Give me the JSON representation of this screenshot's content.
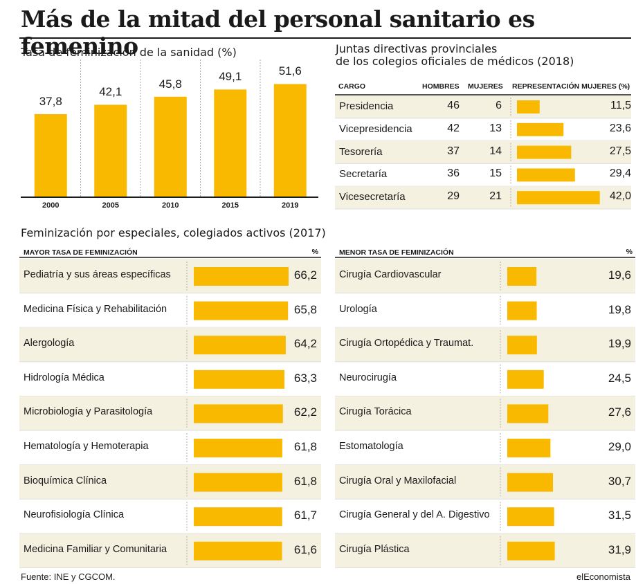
{
  "title": "Más de la mitad del personal sanitario es femenino",
  "colors": {
    "accent": "#f9b900",
    "stripe": "#f5f1e0"
  },
  "chart_data": [
    {
      "type": "bar",
      "title": "Tasa de feminización de la sanidad (%)",
      "categories": [
        "2000",
        "2005",
        "2010",
        "2015",
        "2019"
      ],
      "values": [
        37.8,
        42.1,
        45.8,
        49.1,
        51.6
      ],
      "value_labels": [
        "37,8",
        "42,1",
        "45,8",
        "49,1",
        "51,6"
      ],
      "ylim": [
        0,
        60
      ]
    },
    {
      "type": "table",
      "title": "Juntas directivas provinciales de los colegios oficiales de médicos (2018)",
      "title_lines": [
        "Juntas directivas provinciales",
        "de los colegios oficiales de médicos (2018)"
      ],
      "headers": [
        "CARGO",
        "HOMBRES",
        "MUJERES",
        "REPRESENTACIÓN MUJERES (%)"
      ],
      "rows": [
        {
          "cargo": "Presidencia",
          "hombres": 46,
          "mujeres": 6,
          "pct": 11.5,
          "pct_label": "11,5"
        },
        {
          "cargo": "Vicepresidencia",
          "hombres": 42,
          "mujeres": 13,
          "pct": 23.6,
          "pct_label": "23,6"
        },
        {
          "cargo": "Tesorería",
          "hombres": 37,
          "mujeres": 14,
          "pct": 27.5,
          "pct_label": "27,5"
        },
        {
          "cargo": "Secretaría",
          "hombres": 36,
          "mujeres": 15,
          "pct": 29.4,
          "pct_label": "29,4"
        },
        {
          "cargo": "Vicesecretaría",
          "hombres": 29,
          "mujeres": 21,
          "pct": 42.0,
          "pct_label": "42,0"
        }
      ]
    },
    {
      "type": "bar",
      "title": "Feminización por especiales, colegiados activos (2017)",
      "header": "MAYOR TASA DE FEMINIZACIÓN",
      "unit": "%",
      "categories": [
        "Pediatría y sus áreas específicas",
        "Medicina Física y Rehabilitación",
        "Alergología",
        "Hidrología Médica",
        "Microbiología y Parasitología",
        "Hematología y Hemoterapia",
        "Bioquímica Clínica",
        "Neurofisiología Clínica",
        "Medicina Familiar y Comunitaria"
      ],
      "values": [
        66.2,
        65.8,
        64.2,
        63.3,
        62.2,
        61.8,
        61.8,
        61.7,
        61.6
      ],
      "value_labels": [
        "66,2",
        "65,8",
        "64,2",
        "63,3",
        "62,2",
        "61,8",
        "61,8",
        "61,7",
        "61,6"
      ]
    },
    {
      "type": "bar",
      "header": "MENOR TASA DE FEMINIZACIÓN",
      "unit": "%",
      "categories": [
        "Cirugía Cardiovascular",
        "Urología",
        "Cirugía Ortopédica y Traumat.",
        "Neurocirugía",
        "Cirugía Torácica",
        "Estomatología",
        "Cirugía Oral y Maxilofacial",
        "Cirugía General y del A. Digestivo",
        "Cirugía Plástica"
      ],
      "values": [
        19.6,
        19.8,
        19.9,
        24.5,
        27.6,
        29.0,
        30.7,
        31.5,
        31.9
      ],
      "value_labels": [
        "19,6",
        "19,8",
        "19,9",
        "24,5",
        "27,6",
        "29,0",
        "30,7",
        "31,5",
        "31,9"
      ]
    }
  ],
  "footer": {
    "source": "Fuente: INE y CGCOM.",
    "brand": "elEconomista"
  }
}
